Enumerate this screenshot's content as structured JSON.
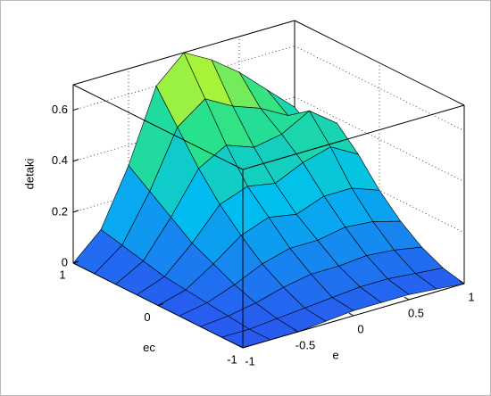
{
  "chart_data": {
    "type": "surface",
    "xlabel": "e",
    "ylabel": "ec",
    "zlabel": "detaki",
    "x": [
      -1,
      -0.75,
      -0.5,
      -0.25,
      0,
      0.25,
      0.5,
      0.75,
      1
    ],
    "y": [
      -1,
      -0.75,
      -0.5,
      -0.25,
      0,
      0.25,
      0.5,
      0.75,
      1
    ],
    "z": [
      [
        0,
        0,
        0,
        0.01,
        0.02,
        0.02,
        0.02,
        0.01,
        0
      ],
      [
        0,
        0,
        0.01,
        0.02,
        0.03,
        0.04,
        0.04,
        0.03,
        0.02
      ],
      [
        0,
        0.01,
        0.03,
        0.06,
        0.08,
        0.08,
        0.09,
        0.08,
        0.06
      ],
      [
        0,
        0.02,
        0.06,
        0.11,
        0.14,
        0.14,
        0.16,
        0.15,
        0.12
      ],
      [
        0,
        0.03,
        0.1,
        0.18,
        0.22,
        0.2,
        0.24,
        0.24,
        0.2
      ],
      [
        0,
        0.04,
        0.14,
        0.26,
        0.3,
        0.28,
        0.33,
        0.36,
        0.3
      ],
      [
        0,
        0.06,
        0.2,
        0.36,
        0.42,
        0.38,
        0.4,
        0.46,
        0.38
      ],
      [
        0,
        0.08,
        0.26,
        0.48,
        0.56,
        0.5,
        0.46,
        0.4,
        0.3
      ],
      [
        0,
        0.1,
        0.32,
        0.6,
        0.7,
        0.64,
        0.56,
        0.46,
        0.36
      ]
    ],
    "xlim": [
      -1,
      1
    ],
    "ylim": [
      -1,
      1
    ],
    "zlim": [
      0,
      0.7
    ],
    "xticks": [
      -1,
      -0.5,
      0,
      0.5,
      1
    ],
    "yticks": [
      -1,
      0,
      1
    ],
    "zticks": [
      0,
      0.2,
      0.4,
      0.6
    ],
    "grid": true
  }
}
